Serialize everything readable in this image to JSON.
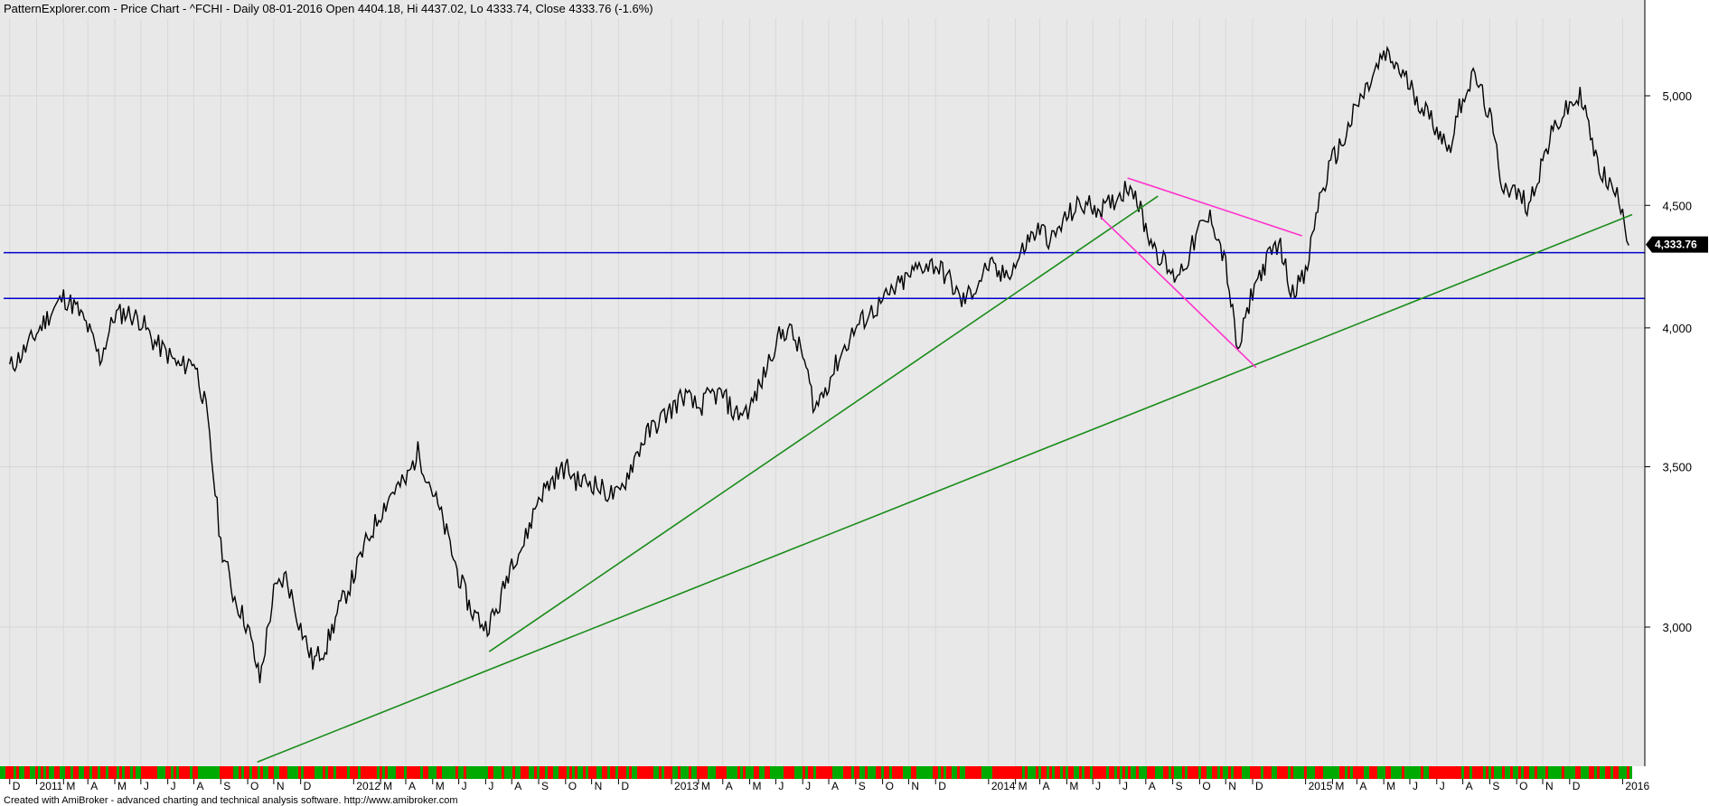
{
  "header": {
    "title": "PatternExplorer.com - Price Chart - ^FCHI - Daily 08-01-2016 Open 4404.18, Hi 4437.02, Lo 4333.74, Close 4333.76 (-1.6%)"
  },
  "footer": {
    "credit": "Created with AmiBroker - advanced charting and technical analysis software. http://www.amibroker.com"
  },
  "colors": {
    "panel_bg": "#e8e8e8",
    "price": "#000000",
    "trendline_green": "#1a8c1a",
    "trendline_magenta": "#ff33cc",
    "support_blue": "#0000cc",
    "volume_up": "#00aa00",
    "volume_down": "#ff0000",
    "last_label_bg": "#000000"
  },
  "chart_data": {
    "type": "line",
    "symbol": "^FCHI",
    "title": "PatternExplorer.com - Price Chart - ^FCHI - Daily 08-01-2016 Open 4404.18, Hi 4437.02, Lo 4333.74, Close 4333.76 (-1.6%)",
    "y_scale": "log",
    "ylim": [
      2600,
      5300
    ],
    "y_ticks": [
      3000,
      3500,
      4000,
      4500,
      5000
    ],
    "y_tick_labels": [
      "3,000",
      "3,500",
      "4,000",
      "4,500",
      "5,000"
    ],
    "last_value_label": "4,333.76",
    "x_tick_labels": [
      "D",
      "2011",
      "M",
      "A",
      "M",
      "J",
      "J",
      "A",
      "S",
      "O",
      "N",
      "D",
      "2012",
      "M",
      "A",
      "M",
      "J",
      "J",
      "A",
      "S",
      "O",
      "N",
      "D",
      "2013",
      "M",
      "A",
      "M",
      "J",
      "J",
      "A",
      "S",
      "O",
      "N",
      "D",
      "2014",
      "M",
      "A",
      "M",
      "J",
      "J",
      "A",
      "S",
      "O",
      "N",
      "D",
      "2015",
      "M",
      "A",
      "M",
      "J",
      "J",
      "A",
      "S",
      "O",
      "N",
      "D",
      "2016"
    ],
    "x_tick_dates": [
      "2010-12-01",
      "2011-01-01",
      "2011-02-01",
      "2011-03-01",
      "2011-04-01",
      "2011-05-01",
      "2011-06-01",
      "2011-07-01",
      "2011-08-01",
      "2011-09-01",
      "2011-10-01",
      "2011-11-01",
      "2012-01-01",
      "2012-02-01",
      "2012-03-01",
      "2012-04-01",
      "2012-05-01",
      "2012-06-01",
      "2012-07-01",
      "2012-08-01",
      "2012-09-01",
      "2012-10-01",
      "2012-11-01",
      "2013-01-01",
      "2013-02-01",
      "2013-03-01",
      "2013-04-01",
      "2013-05-01",
      "2013-06-01",
      "2013-07-01",
      "2013-08-01",
      "2013-09-01",
      "2013-10-01",
      "2013-11-01",
      "2014-01-01",
      "2014-02-01",
      "2014-03-01",
      "2014-04-01",
      "2014-05-01",
      "2014-06-01",
      "2014-07-01",
      "2014-08-01",
      "2014-09-01",
      "2014-10-01",
      "2014-11-01",
      "2015-01-01",
      "2015-02-01",
      "2015-03-01",
      "2015-04-01",
      "2015-05-01",
      "2015-06-01",
      "2015-07-01",
      "2015-08-01",
      "2015-09-01",
      "2015-10-01",
      "2015-11-01",
      "2016-01-01"
    ],
    "series": [
      {
        "x": [
          "2010-12-01",
          "2010-12-15",
          "2011-01-01",
          "2011-01-15",
          "2011-02-01",
          "2011-02-15",
          "2011-03-01",
          "2011-03-15",
          "2011-04-01",
          "2011-04-15",
          "2011-05-01",
          "2011-05-15",
          "2011-06-01",
          "2011-06-15",
          "2011-07-01",
          "2011-07-15",
          "2011-08-01",
          "2011-08-15",
          "2011-09-01",
          "2011-09-15",
          "2011-10-01",
          "2011-10-15",
          "2011-11-01",
          "2011-11-15",
          "2011-12-01",
          "2011-12-15",
          "2012-01-01",
          "2012-01-15",
          "2012-02-01",
          "2012-02-15",
          "2012-03-01",
          "2012-03-15",
          "2012-04-01",
          "2012-04-15",
          "2012-05-01",
          "2012-05-15",
          "2012-06-01",
          "2012-06-15",
          "2012-07-01",
          "2012-07-15",
          "2012-08-01",
          "2012-08-15",
          "2012-09-01",
          "2012-09-15",
          "2012-10-01",
          "2012-10-15",
          "2012-11-01",
          "2012-11-15",
          "2012-12-01",
          "2012-12-15",
          "2013-01-01",
          "2013-01-15",
          "2013-02-01",
          "2013-02-15",
          "2013-03-01",
          "2013-03-15",
          "2013-04-01",
          "2013-04-15",
          "2013-05-01",
          "2013-05-15",
          "2013-06-01",
          "2013-06-15",
          "2013-07-01",
          "2013-07-15",
          "2013-08-01",
          "2013-08-15",
          "2013-09-01",
          "2013-09-15",
          "2013-10-01",
          "2013-10-15",
          "2013-11-01",
          "2013-11-15",
          "2013-12-01",
          "2013-12-15",
          "2014-01-01",
          "2014-01-15",
          "2014-02-01",
          "2014-02-15",
          "2014-03-01",
          "2014-03-15",
          "2014-04-01",
          "2014-04-15",
          "2014-05-01",
          "2014-05-15",
          "2014-06-01",
          "2014-06-15",
          "2014-07-01",
          "2014-07-15",
          "2014-08-01",
          "2014-08-15",
          "2014-09-01",
          "2014-09-15",
          "2014-10-01",
          "2014-10-15",
          "2014-11-01",
          "2014-11-15",
          "2014-12-01",
          "2014-12-15",
          "2015-01-01",
          "2015-01-15",
          "2015-02-01",
          "2015-02-15",
          "2015-03-01",
          "2015-03-15",
          "2015-04-01",
          "2015-04-15",
          "2015-05-01",
          "2015-05-15",
          "2015-06-01",
          "2015-06-15",
          "2015-07-01",
          "2015-07-15",
          "2015-08-01",
          "2015-08-15",
          "2015-09-01",
          "2015-09-15",
          "2015-10-01",
          "2015-10-15",
          "2015-11-01",
          "2015-11-15",
          "2015-12-01",
          "2015-12-15",
          "2016-01-01",
          "2016-01-08"
        ],
        "values": [
          3850,
          3900,
          3980,
          4050,
          4120,
          4080,
          4000,
          3880,
          4050,
          4060,
          4030,
          3950,
          3900,
          3850,
          3880,
          3700,
          3250,
          3100,
          3000,
          2850,
          3100,
          3150,
          3000,
          2900,
          2950,
          3050,
          3150,
          3250,
          3350,
          3420,
          3450,
          3550,
          3420,
          3300,
          3150,
          3050,
          3000,
          3050,
          3200,
          3250,
          3400,
          3450,
          3500,
          3450,
          3450,
          3420,
          3400,
          3500,
          3600,
          3650,
          3700,
          3750,
          3700,
          3750,
          3750,
          3680,
          3700,
          3800,
          3950,
          4000,
          3900,
          3700,
          3800,
          3900,
          4000,
          4050,
          4100,
          4150,
          4200,
          4250,
          4250,
          4200,
          4100,
          4150,
          4250,
          4200,
          4250,
          4350,
          4400,
          4350,
          4450,
          4500,
          4500,
          4480,
          4550,
          4600,
          4400,
          4300,
          4200,
          4250,
          4400,
          4450,
          4250,
          3900,
          4150,
          4250,
          4350,
          4150,
          4200,
          4500,
          4700,
          4800,
          4950,
          5050,
          5200,
          5150,
          5050,
          4950,
          4850,
          4750,
          5000,
          5100,
          4900,
          4600,
          4550,
          4500,
          4700,
          4850,
          4950,
          5000,
          4700,
          4600,
          4500,
          4330
        ],
        "name": ""
      }
    ],
    "trendlines": [
      {
        "color": "green",
        "from": {
          "x": "2011-09-12",
          "y": 2635
        },
        "to": {
          "x": "2016-01-12",
          "y": 4460
        }
      },
      {
        "color": "green",
        "from": {
          "x": "2012-06-05",
          "y": 2930
        },
        "to": {
          "x": "2014-07-15",
          "y": 4540
        }
      },
      {
        "color": "magenta",
        "from": {
          "x": "2014-06-10",
          "y": 4620
        },
        "to": {
          "x": "2014-12-28",
          "y": 4370
        }
      },
      {
        "color": "magenta",
        "from": {
          "x": "2014-05-10",
          "y": 4450
        },
        "to": {
          "x": "2014-11-05",
          "y": 3850
        }
      }
    ],
    "horizontal_lines": [
      {
        "color": "blue",
        "y": 4300
      },
      {
        "color": "blue",
        "y": 4115
      }
    ],
    "volume_bar": true,
    "grid": true
  }
}
